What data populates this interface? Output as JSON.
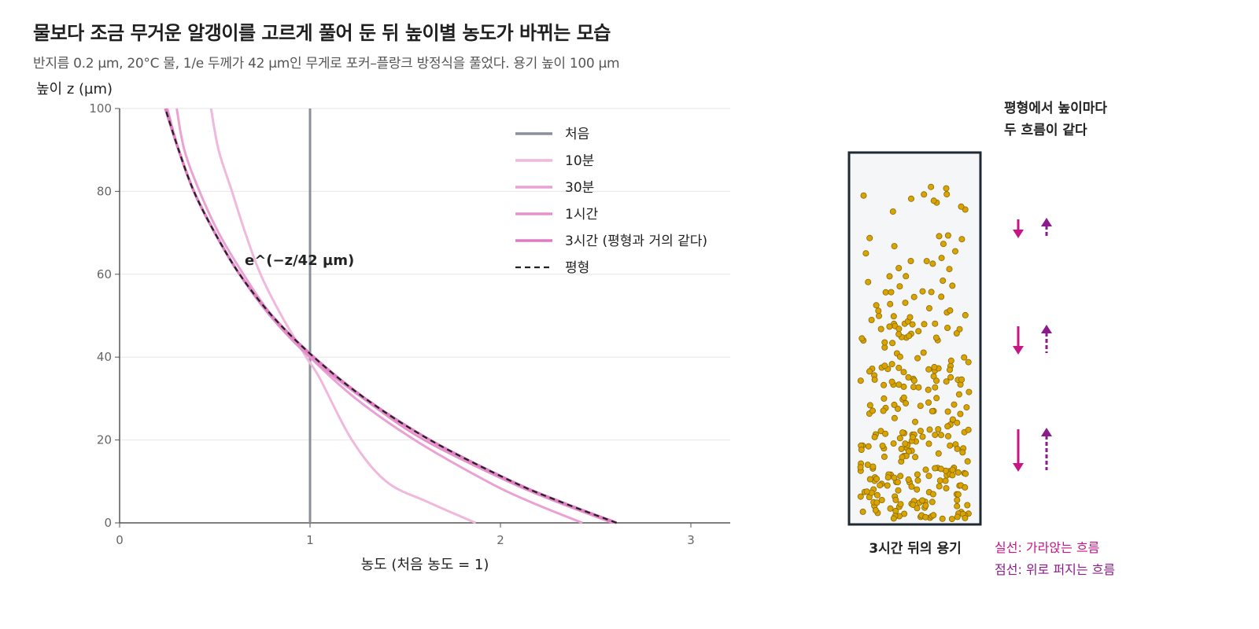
{
  "header": {
    "title": "물보다 조금 무거운 알갱이를 고르게 풀어 둔 뒤 높이별 농도가 바뀌는 모습",
    "subtitle": "반지름 0.2 µm, 20°C 물, 1/e 두께가 42 µm인 무게로 포커–플랑크 방정식을 풀었다. 용기 높이 100 µm"
  },
  "chart_data": [
    {
      "type": "line",
      "xlabel": "농도 (처음 농도 = 1)",
      "ylabel": "높이 z (µm)",
      "xlim": [
        0,
        3.2
      ],
      "ylim": [
        0,
        100
      ],
      "x_ticks": [
        0,
        1,
        2,
        3
      ],
      "y_ticks": [
        0,
        20,
        40,
        60,
        80,
        100
      ],
      "grid": "horizontal",
      "legend_position": "top-right",
      "annotation": "e^(−z/42 µm)",
      "series": [
        {
          "name": "처음",
          "color": "#8a8f98",
          "dash": "solid",
          "points": [
            [
              1.0,
              0
            ],
            [
              1.0,
              100
            ]
          ]
        },
        {
          "name": "10분",
          "color": "#f0b8dd",
          "dash": "solid",
          "points": [
            [
              1.87,
              0
            ],
            [
              1.62,
              5
            ],
            [
              1.4,
              10
            ],
            [
              1.22,
              20
            ],
            [
              1.05,
              35
            ],
            [
              0.98,
              40
            ],
            [
              0.85,
              50
            ],
            [
              0.74,
              60
            ],
            [
              0.66,
              70
            ],
            [
              0.59,
              80
            ],
            [
              0.52,
              90
            ],
            [
              0.48,
              100
            ]
          ]
        },
        {
          "name": "30분",
          "color": "#e9a2d3",
          "dash": "solid",
          "points": [
            [
              2.43,
              0
            ],
            [
              2.16,
              5
            ],
            [
              1.93,
              10
            ],
            [
              1.55,
              20
            ],
            [
              1.24,
              30
            ],
            [
              1.0,
              40
            ],
            [
              0.8,
              50
            ],
            [
              0.65,
              60
            ],
            [
              0.52,
              70
            ],
            [
              0.42,
              80
            ],
            [
              0.34,
              90
            ],
            [
              0.3,
              100
            ]
          ]
        },
        {
          "name": "1시간",
          "color": "#e592cb",
          "dash": "solid",
          "points": [
            [
              2.59,
              0
            ],
            [
              2.3,
              5
            ],
            [
              2.04,
              10
            ],
            [
              1.6,
              20
            ],
            [
              1.28,
              30
            ],
            [
              1.0,
              40
            ],
            [
              0.79,
              50
            ],
            [
              0.63,
              60
            ],
            [
              0.5,
              70
            ],
            [
              0.39,
              80
            ],
            [
              0.31,
              90
            ],
            [
              0.25,
              100
            ]
          ]
        },
        {
          "name": "3시간 (평형과 거의 같다)",
          "color": "#de7cc2",
          "dash": "solid",
          "points": [
            [
              2.61,
              0
            ],
            [
              2.32,
              5
            ],
            [
              2.06,
              10
            ],
            [
              1.63,
              20
            ],
            [
              1.29,
              30
            ],
            [
              1.02,
              40
            ],
            [
              0.8,
              50
            ],
            [
              0.63,
              60
            ],
            [
              0.5,
              70
            ],
            [
              0.39,
              80
            ],
            [
              0.31,
              90
            ],
            [
              0.24,
              100
            ]
          ]
        },
        {
          "name": "평형",
          "color": "#222222",
          "dash": "dashed",
          "points": [
            [
              2.61,
              0
            ],
            [
              2.32,
              5
            ],
            [
              2.06,
              10
            ],
            [
              1.63,
              20
            ],
            [
              1.29,
              30
            ],
            [
              1.02,
              40
            ],
            [
              0.8,
              50
            ],
            [
              0.63,
              60
            ],
            [
              0.5,
              70
            ],
            [
              0.39,
              80
            ],
            [
              0.31,
              90
            ],
            [
              0.24,
              100
            ]
          ]
        }
      ]
    }
  ],
  "container": {
    "caption": "3시간 뒤의 용기",
    "heading_line1": "평형에서 높이마다",
    "heading_line2": "두 흐름이 같다",
    "particle_color": "#d9a300",
    "box_fill": "#f4f6f8",
    "box_stroke": "#1f2933",
    "particle_count": 300,
    "flux_down_color": "#c71585",
    "flux_up_color": "#8b1a8b",
    "flux_levels": [
      {
        "level": "top",
        "strength": "small"
      },
      {
        "level": "middle",
        "strength": "medium"
      },
      {
        "level": "bottom",
        "strength": "large"
      }
    ],
    "legend_solid": "실선: 가라앉는 흐름",
    "legend_dashed": "점선: 위로 퍼지는 흐름"
  }
}
